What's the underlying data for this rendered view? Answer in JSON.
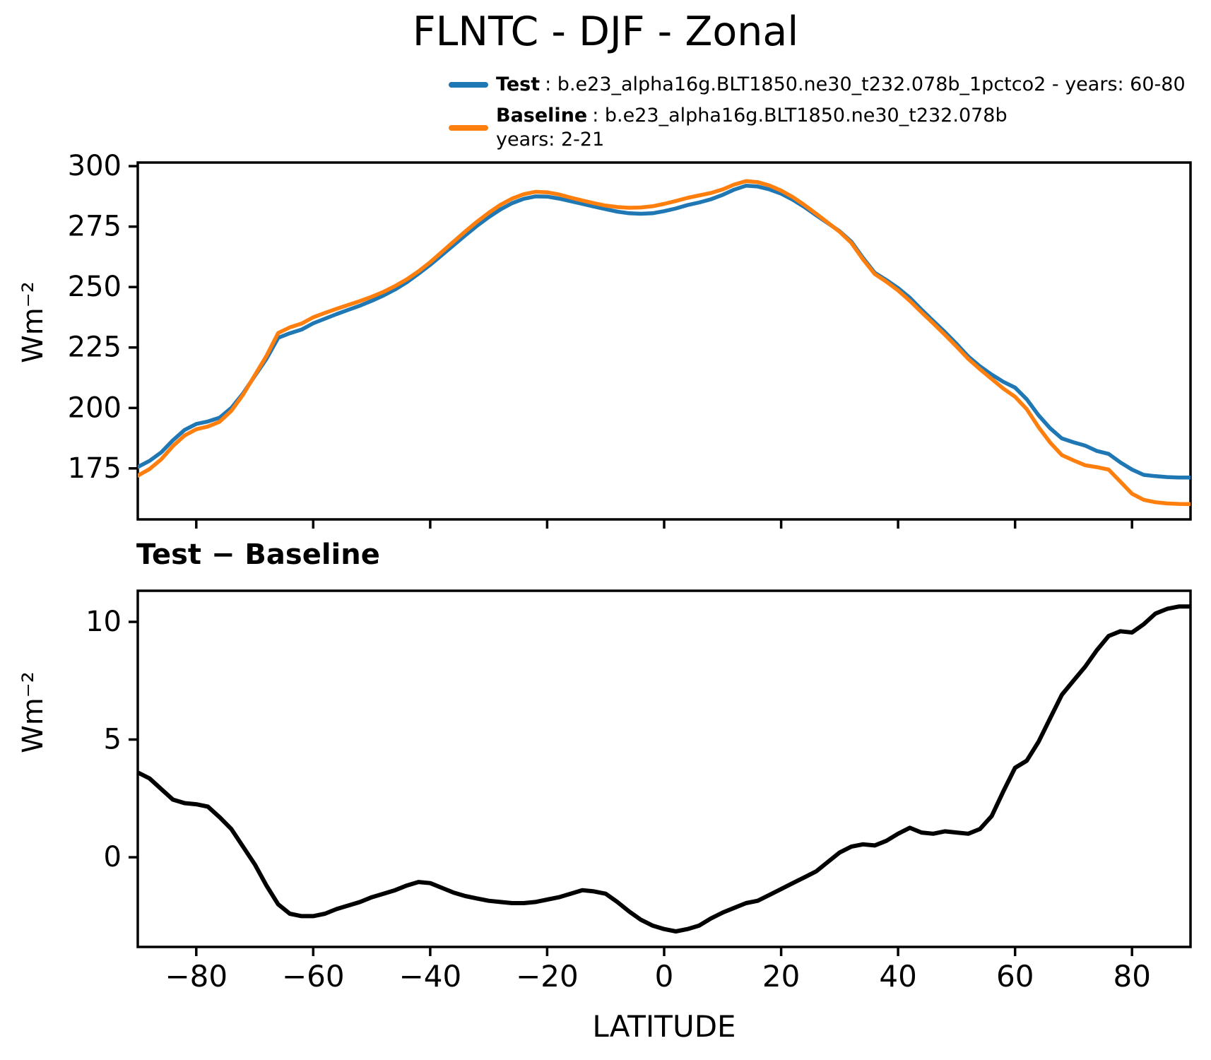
{
  "figure": {
    "title": "FLNTC - DJF - Zonal",
    "xlabel": "LATITUDE",
    "background": "#ffffff",
    "text_color": "#000000"
  },
  "legend": {
    "items": [
      {
        "label": "Test",
        "desc": ": b.e23_alpha16g.BLT1850.ne30_t232.078b_1pctco2 - years: 60-80",
        "desc2": "",
        "color": "#1f77b4"
      },
      {
        "label": "Baseline",
        "desc": ": b.e23_alpha16g.BLT1850.ne30_t232.078b",
        "desc2": "years: 2-21",
        "color": "#ff7f0e"
      }
    ]
  },
  "chart_data": [
    {
      "type": "line",
      "title": "FLNTC - DJF - Zonal",
      "xlabel": "",
      "ylabel": "Wm⁻²",
      "grid": false,
      "legend_position": "above-top-right",
      "xlim": [
        -90,
        90
      ],
      "ylim": [
        153.9,
        301.5
      ],
      "xticks": [
        -80,
        -60,
        -40,
        -20,
        0,
        20,
        40,
        60,
        80
      ],
      "xtick_labels": [
        "−80",
        "−60",
        "−40",
        "−20",
        "0",
        "20",
        "40",
        "60",
        "80"
      ],
      "xtick_labels_visible": false,
      "yticks": [
        175,
        200,
        225,
        250,
        275,
        300
      ],
      "ytick_labels": [
        "175",
        "200",
        "225",
        "250",
        "275",
        "300"
      ],
      "x": [
        -90,
        -88,
        -86,
        -84,
        -82,
        -80,
        -78,
        -76,
        -74,
        -72,
        -70,
        -68,
        -66,
        -64,
        -62,
        -60,
        -58,
        -56,
        -54,
        -52,
        -50,
        -48,
        -46,
        -44,
        -42,
        -40,
        -38,
        -36,
        -34,
        -32,
        -30,
        -28,
        -26,
        -24,
        -22,
        -20,
        -18,
        -16,
        -14,
        -12,
        -10,
        -8,
        -6,
        -4,
        -2,
        0,
        2,
        4,
        6,
        8,
        10,
        12,
        14,
        16,
        18,
        20,
        22,
        24,
        26,
        28,
        30,
        32,
        34,
        36,
        38,
        40,
        42,
        44,
        46,
        48,
        50,
        52,
        54,
        56,
        58,
        60,
        62,
        64,
        66,
        68,
        70,
        72,
        74,
        76,
        78,
        80,
        82,
        84,
        86,
        88,
        90
      ],
      "series": [
        {
          "name": "Test",
          "color": "#1f77b4",
          "values": [
            175.6,
            178.1,
            181.6,
            186.6,
            190.9,
            193.4,
            194.4,
            196.0,
            200.0,
            206.0,
            213.2,
            220.3,
            229.0,
            230.9,
            232.4,
            235.0,
            236.9,
            238.8,
            240.6,
            242.3,
            244.3,
            246.5,
            249.0,
            252.0,
            255.5,
            259.2,
            263.2,
            267.3,
            271.4,
            275.3,
            278.9,
            282.1,
            284.7,
            286.5,
            287.5,
            287.4,
            286.6,
            285.5,
            284.4,
            283.3,
            282.2,
            281.2,
            280.5,
            280.3,
            280.5,
            281.4,
            282.5,
            283.9,
            285.0,
            286.3,
            288.1,
            290.3,
            291.9,
            291.6,
            290.4,
            288.6,
            286.1,
            283.1,
            279.7,
            276.4,
            273.1,
            268.8,
            262.1,
            255.9,
            252.9,
            249.6,
            245.6,
            240.7,
            236.0,
            231.4,
            226.5,
            221.3,
            217.2,
            213.8,
            210.8,
            208.4,
            203.6,
            197.0,
            191.6,
            187.4,
            185.8,
            184.4,
            182.2,
            181.0,
            177.5,
            174.5,
            172.3,
            171.8,
            171.4,
            171.2,
            171.2
          ]
        },
        {
          "name": "Baseline",
          "color": "#ff7f0e",
          "values": [
            172.0,
            174.7,
            178.7,
            184.2,
            188.6,
            191.2,
            192.3,
            194.3,
            198.8,
            205.5,
            213.5,
            221.5,
            231.0,
            233.3,
            234.9,
            237.5,
            239.3,
            241.0,
            242.6,
            244.2,
            246.0,
            248.0,
            250.4,
            253.2,
            256.5,
            260.3,
            264.5,
            268.8,
            273.0,
            277.0,
            280.7,
            284.0,
            286.6,
            288.4,
            289.4,
            289.2,
            288.3,
            287.0,
            285.8,
            284.7,
            283.7,
            283.1,
            282.8,
            282.9,
            283.4,
            284.4,
            285.6,
            286.9,
            287.9,
            288.9,
            290.4,
            292.4,
            293.8,
            293.4,
            292.0,
            289.9,
            287.2,
            283.9,
            280.3,
            276.6,
            272.9,
            268.3,
            261.5,
            255.4,
            252.2,
            248.6,
            244.3,
            239.6,
            235.0,
            230.3,
            225.4,
            220.3,
            216.0,
            212.0,
            208.0,
            204.6,
            199.5,
            192.1,
            185.7,
            180.5,
            178.3,
            176.3,
            175.5,
            174.5,
            169.5,
            164.5,
            162.0,
            161.0,
            160.5,
            160.3,
            160.2
          ]
        }
      ]
    },
    {
      "type": "line",
      "title": "Test − Baseline",
      "xlabel": "LATITUDE",
      "ylabel": "Wm⁻²",
      "grid": false,
      "xlim": [
        -90,
        90
      ],
      "ylim": [
        -3.81,
        11.32
      ],
      "xticks": [
        -80,
        -60,
        -40,
        -20,
        0,
        20,
        40,
        60,
        80
      ],
      "xtick_labels": [
        "−80",
        "−60",
        "−40",
        "−20",
        "0",
        "20",
        "40",
        "60",
        "80"
      ],
      "xtick_labels_visible": true,
      "yticks": [
        0,
        5,
        10
      ],
      "ytick_labels": [
        "0",
        "5",
        "10"
      ],
      "x": [
        -90,
        -88,
        -86,
        -84,
        -82,
        -80,
        -78,
        -76,
        -74,
        -72,
        -70,
        -68,
        -66,
        -64,
        -62,
        -60,
        -58,
        -56,
        -54,
        -52,
        -50,
        -48,
        -46,
        -44,
        -42,
        -40,
        -38,
        -36,
        -34,
        -32,
        -30,
        -28,
        -26,
        -24,
        -22,
        -20,
        -18,
        -16,
        -14,
        -12,
        -10,
        -8,
        -6,
        -4,
        -2,
        0,
        2,
        4,
        6,
        8,
        10,
        12,
        14,
        16,
        18,
        20,
        22,
        24,
        26,
        28,
        30,
        32,
        34,
        36,
        38,
        40,
        42,
        44,
        46,
        48,
        50,
        52,
        54,
        56,
        58,
        60,
        62,
        64,
        66,
        68,
        70,
        72,
        74,
        76,
        78,
        80,
        82,
        84,
        86,
        88,
        90
      ],
      "series": [
        {
          "name": "Test − Baseline",
          "color": "#000000",
          "values": [
            3.6,
            3.35,
            2.9,
            2.45,
            2.3,
            2.25,
            2.15,
            1.7,
            1.2,
            0.45,
            -0.3,
            -1.2,
            -2.0,
            -2.4,
            -2.5,
            -2.5,
            -2.4,
            -2.2,
            -2.05,
            -1.9,
            -1.7,
            -1.55,
            -1.4,
            -1.2,
            -1.05,
            -1.1,
            -1.3,
            -1.5,
            -1.65,
            -1.75,
            -1.85,
            -1.9,
            -1.95,
            -1.95,
            -1.9,
            -1.8,
            -1.7,
            -1.55,
            -1.4,
            -1.45,
            -1.55,
            -1.9,
            -2.3,
            -2.65,
            -2.9,
            -3.05,
            -3.15,
            -3.05,
            -2.9,
            -2.6,
            -2.35,
            -2.15,
            -1.95,
            -1.85,
            -1.6,
            -1.35,
            -1.1,
            -0.85,
            -0.6,
            -0.2,
            0.2,
            0.45,
            0.55,
            0.5,
            0.7,
            1.0,
            1.25,
            1.05,
            1.0,
            1.1,
            1.05,
            1.0,
            1.2,
            1.75,
            2.8,
            3.8,
            4.1,
            4.9,
            5.9,
            6.9,
            7.5,
            8.1,
            8.8,
            9.4,
            9.6,
            9.55,
            9.9,
            10.35,
            10.55,
            10.65,
            10.65
          ]
        }
      ]
    }
  ]
}
